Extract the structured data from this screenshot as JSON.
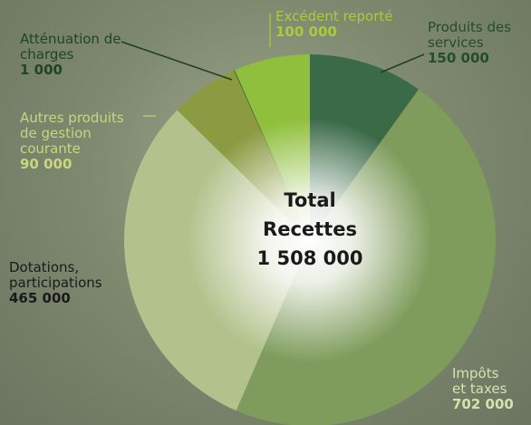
{
  "chart_data": {
    "type": "pie",
    "categories": [
      "Produits des services",
      "Impôts et taxes",
      "Dotations, participations",
      "Autres produits de gestion courante",
      "Atténuation de charges",
      "Excédent reporté"
    ],
    "values": [
      150000,
      702000,
      465000,
      90000,
      1000,
      100000
    ],
    "value_labels": [
      "150 000",
      "702 000",
      "465 000",
      "90 000",
      "1 000",
      "100 000"
    ],
    "colors": [
      "#3b6a48",
      "#7f9c5c",
      "#b3c28d",
      "#8c9b42",
      "#2c5a36",
      "#8fbf3c"
    ],
    "center_title": [
      "Total",
      "Recettes"
    ],
    "total": 1508000,
    "total_label": "1 508 000"
  }
}
